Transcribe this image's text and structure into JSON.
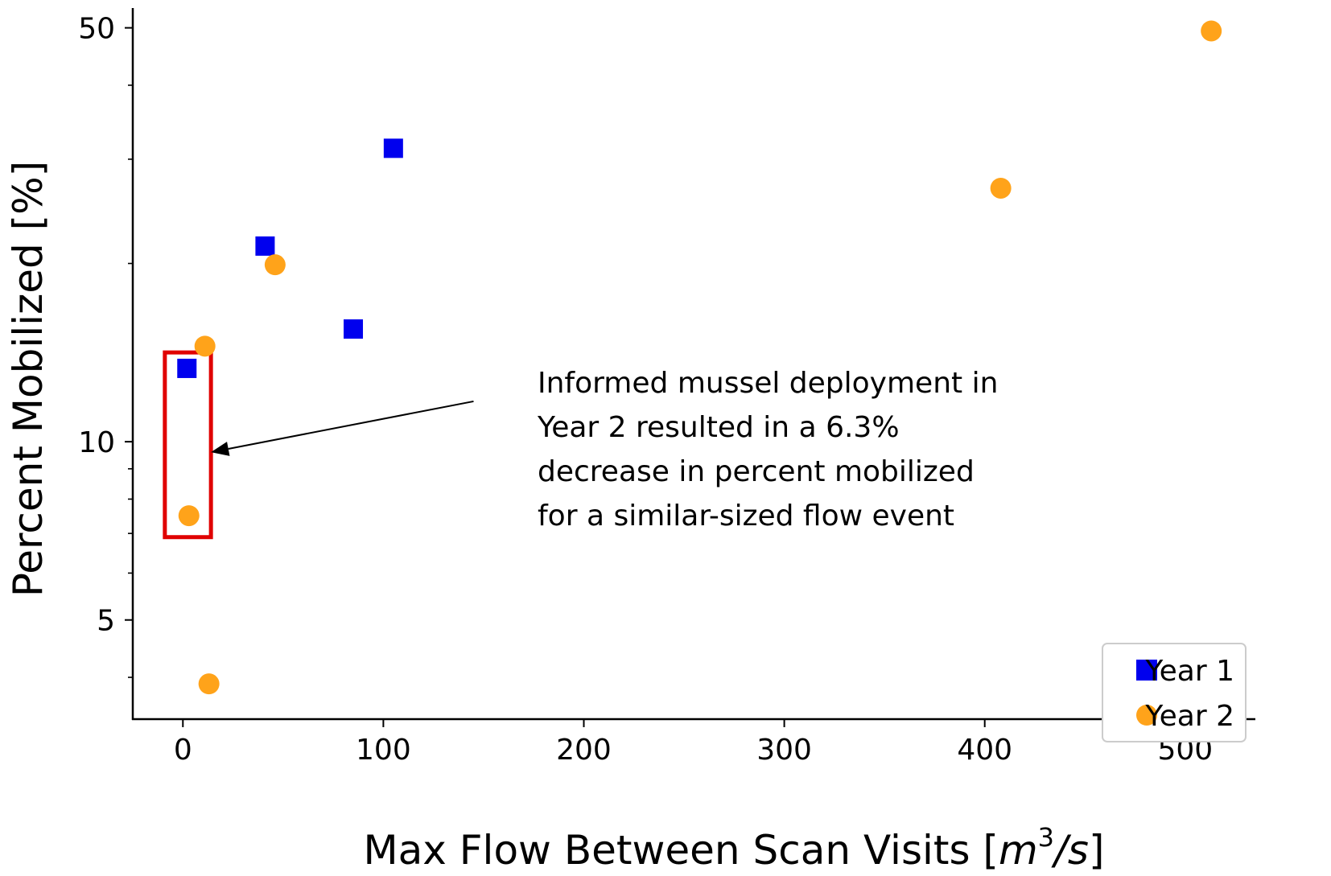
{
  "chart_data": {
    "type": "scatter",
    "title": "",
    "xlabel": "Max Flow Between Scan Visits [m³/s]",
    "xlabel_parts": {
      "main": "Max Flow Between Scan Visits [",
      "var": "m",
      "sup": "3",
      "slash": "/",
      "var2": "s",
      "close": "]"
    },
    "ylabel": "Percent Mobilized [%]",
    "xlim": [
      -25,
      535
    ],
    "ylim": [
      3.4,
      54
    ],
    "yscale": "log",
    "xticks": [
      0,
      100,
      200,
      300,
      400,
      500
    ],
    "xtick_labels": [
      "0",
      "100",
      "200",
      "300",
      "400",
      "500"
    ],
    "yticks": [
      5,
      10,
      50
    ],
    "ytick_labels": [
      "5",
      "10",
      "50"
    ],
    "grid": false,
    "legend_position": "lower-right",
    "series": [
      {
        "name": "Year 1",
        "marker": "square",
        "color": "#0000ee",
        "x": [
          2,
          41,
          85,
          105
        ],
        "y": [
          13.3,
          21.4,
          15.5,
          31.3
        ]
      },
      {
        "name": "Year 2",
        "marker": "circle",
        "color": "#ffa31a",
        "x": [
          3,
          11,
          13,
          46,
          408,
          513
        ],
        "y": [
          7.5,
          14.5,
          3.9,
          19.9,
          26.8,
          49.4
        ]
      }
    ],
    "annotation": {
      "lines": [
        "Informed mussel deployment in",
        "Year 2 resulted in a 6.3%",
        "decrease in percent mobilized",
        "for a similar-sized flow event"
      ],
      "highlight_color": "#e00000",
      "highlight_x": [
        -9,
        14
      ],
      "highlight_y": [
        6.9,
        14.15
      ],
      "arrow_from": [
        145,
        11.7
      ],
      "arrow_to": [
        14,
        9.6
      ]
    }
  }
}
